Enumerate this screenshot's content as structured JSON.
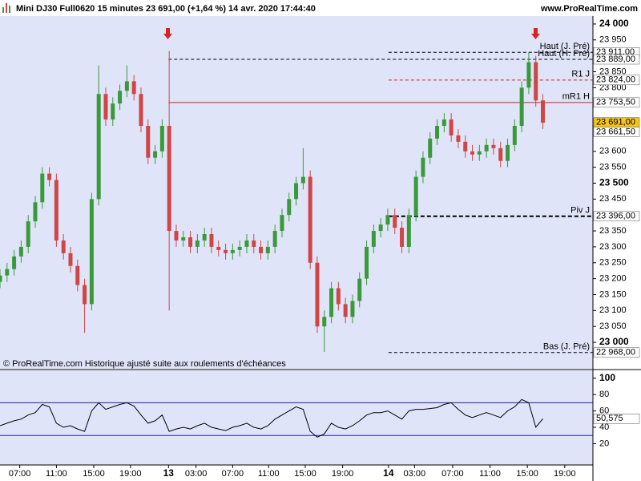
{
  "header": {
    "title": "Mini DJ30 Full0620 15 minutes 23 691,00 (+1,64 %) 14 avr. 2020 17:44:40",
    "site": "www.ProRealTime.com"
  },
  "chart_data": [
    {
      "type": "candlestick",
      "note": "© ProRealTime.com Historique ajusté suite aux roulements d'échéances",
      "up_color": "#3a9a3a",
      "down_color": "#d04545",
      "x": [
        0,
        1,
        2,
        3,
        4,
        5,
        6,
        7,
        8,
        9,
        10,
        11,
        12,
        13,
        14,
        15,
        16,
        17,
        18,
        19,
        20,
        21,
        22,
        23,
        24,
        25,
        26,
        27,
        28,
        29,
        30,
        31,
        32,
        33,
        34,
        35,
        36,
        37,
        38,
        39,
        40,
        41,
        42,
        43,
        44,
        45,
        46,
        47,
        48,
        49,
        50,
        51,
        52,
        53,
        54,
        55,
        56,
        57,
        58,
        59,
        60,
        61,
        62,
        63,
        64,
        65,
        66,
        67,
        68,
        69,
        70,
        71,
        72,
        73,
        74,
        75,
        76,
        77
      ],
      "open": [
        23190,
        23210,
        23230,
        23270,
        23300,
        23380,
        23440,
        23530,
        23510,
        23320,
        23280,
        23240,
        23180,
        23120,
        23450,
        23780,
        23700,
        23750,
        23790,
        23820,
        23780,
        23680,
        23580,
        23600,
        23680,
        23350,
        23320,
        23330,
        23300,
        23320,
        23340,
        23300,
        23290,
        23280,
        23290,
        23300,
        23320,
        23300,
        23280,
        23300,
        23350,
        23400,
        23450,
        23500,
        23520,
        23250,
        23050,
        23080,
        23170,
        23120,
        23080,
        23130,
        23200,
        23300,
        23350,
        23370,
        23400,
        23360,
        23300,
        23400,
        23520,
        23580,
        23640,
        23680,
        23700,
        23650,
        23630,
        23600,
        23590,
        23600,
        23620,
        23610,
        23570,
        23620,
        23680,
        23800,
        23880,
        23760
      ],
      "high": [
        23230,
        23250,
        23290,
        23320,
        23400,
        23460,
        23550,
        23550,
        23530,
        23340,
        23300,
        23260,
        23200,
        23470,
        23870,
        23800,
        23770,
        23810,
        23870,
        23840,
        23800,
        23700,
        23620,
        23700,
        23915,
        23370,
        23350,
        23350,
        23340,
        23360,
        23360,
        23320,
        23310,
        23310,
        23320,
        23340,
        23340,
        23320,
        23320,
        23370,
        23420,
        23470,
        23520,
        23610,
        23540,
        23270,
        23100,
        23190,
        23190,
        23140,
        23150,
        23220,
        23320,
        23370,
        23390,
        23420,
        23420,
        23380,
        23420,
        23540,
        23600,
        23660,
        23700,
        23720,
        23720,
        23670,
        23650,
        23620,
        23620,
        23640,
        23640,
        23630,
        23640,
        23700,
        23820,
        23911,
        23900,
        23780
      ],
      "low": [
        23170,
        23190,
        23210,
        23250,
        23280,
        23360,
        23420,
        23490,
        23300,
        23260,
        23220,
        23160,
        23030,
        23100,
        23430,
        23680,
        23680,
        23730,
        23770,
        23760,
        23660,
        23560,
        23560,
        23580,
        23100,
        23300,
        23300,
        23280,
        23280,
        23300,
        23280,
        23270,
        23260,
        23260,
        23270,
        23280,
        23280,
        23260,
        23260,
        23280,
        23330,
        23380,
        23430,
        23480,
        23230,
        23030,
        22970,
        23060,
        23100,
        23060,
        23060,
        23110,
        23180,
        23280,
        23330,
        23350,
        23340,
        23280,
        23280,
        23380,
        23500,
        23560,
        23620,
        23660,
        23630,
        23610,
        23580,
        23570,
        23570,
        23580,
        23590,
        23550,
        23550,
        23600,
        23660,
        23780,
        23740,
        23670
      ],
      "close": [
        23210,
        23230,
        23270,
        23300,
        23380,
        23440,
        23530,
        23510,
        23320,
        23280,
        23240,
        23180,
        23120,
        23450,
        23780,
        23700,
        23750,
        23790,
        23820,
        23780,
        23680,
        23580,
        23600,
        23680,
        23350,
        23320,
        23330,
        23300,
        23320,
        23340,
        23300,
        23290,
        23280,
        23290,
        23300,
        23320,
        23300,
        23280,
        23300,
        23350,
        23400,
        23450,
        23500,
        23520,
        23250,
        23050,
        23080,
        23170,
        23120,
        23080,
        23130,
        23200,
        23300,
        23350,
        23370,
        23400,
        23360,
        23300,
        23400,
        23520,
        23580,
        23640,
        23680,
        23700,
        23650,
        23630,
        23600,
        23590,
        23600,
        23620,
        23610,
        23570,
        23620,
        23680,
        23800,
        23880,
        23760,
        23690
      ],
      "xlim": [
        0,
        84.1
      ],
      "ylim": [
        22917,
        24025
      ],
      "yticks": [
        {
          "value": 23000,
          "label": "23 000"
        },
        {
          "value": 23050,
          "label": "23 050"
        },
        {
          "value": 23100,
          "label": "23 100"
        },
        {
          "value": 23150,
          "label": "23 150"
        },
        {
          "value": 23200,
          "label": "23 200"
        },
        {
          "value": 23250,
          "label": "23 250"
        },
        {
          "value": 23300,
          "label": "23 300"
        },
        {
          "value": 23350,
          "label": "23 350"
        },
        {
          "value": 23450,
          "label": "23 450"
        },
        {
          "value": 23500,
          "label": "23 500"
        },
        {
          "value": 23550,
          "label": "23 550"
        },
        {
          "value": 23600,
          "label": "23 600"
        },
        {
          "value": 23800,
          "label": "23 800"
        },
        {
          "value": 23850,
          "label": "23 850"
        },
        {
          "value": 23950,
          "label": "23 950"
        },
        {
          "value": 24000,
          "label": "24 000"
        }
      ],
      "levels": [
        {
          "name": "Haut (J. Pré)",
          "value": 23911,
          "label": "23 911,00",
          "from": 55.1,
          "color": "#000000",
          "dash": true
        },
        {
          "name": "Haut (H. Pré)",
          "value": 23889,
          "label": "23 889,00",
          "from": 23.9,
          "color": "#000000",
          "dash": true
        },
        {
          "name": "R1 J",
          "value": 23824,
          "label": "23 824,00",
          "from": 55.1,
          "color": "#d02020",
          "dash": true
        },
        {
          "name": "mR1 H",
          "value": 23753.5,
          "label": "23 753,50",
          "from": 23.9,
          "color": "#d02020",
          "dash": false
        },
        {
          "name": "Piv J",
          "value": 23396,
          "label": "23 396,00",
          "from": 55.1,
          "color": "#000000",
          "dash": true,
          "bold": true
        },
        {
          "name": "Bas (J. Pré)",
          "value": 22968,
          "label": "22 968,00",
          "from": 55.1,
          "color": "#000000",
          "dash": true
        }
      ],
      "current": {
        "value": 23691,
        "label": "23 691,00",
        "color": "#f5c518"
      },
      "bid": {
        "value": 23661.5,
        "label": "23 661,50"
      }
    },
    {
      "type": "line",
      "color": "#000000",
      "values": [
        42,
        45,
        48,
        50,
        55,
        58,
        68,
        65,
        45,
        40,
        42,
        38,
        35,
        60,
        70,
        62,
        65,
        68,
        70,
        66,
        55,
        45,
        48,
        55,
        35,
        38,
        40,
        38,
        42,
        45,
        40,
        38,
        36,
        40,
        42,
        45,
        40,
        38,
        42,
        50,
        55,
        60,
        65,
        62,
        35,
        28,
        32,
        45,
        40,
        38,
        42,
        48,
        55,
        58,
        58,
        60,
        55,
        50,
        60,
        62,
        62,
        63,
        64,
        68,
        70,
        62,
        55,
        52,
        55,
        58,
        55,
        52,
        60,
        65,
        74,
        70,
        40,
        50.575
      ],
      "bands": [
        30,
        70
      ],
      "band_color": "#2020a0",
      "current": {
        "value": 50.575,
        "label": "50,575"
      },
      "xlim": [
        0,
        84.1
      ],
      "ylim": [
        -6,
        109.6
      ],
      "yticks": [
        20,
        40,
        60,
        80,
        100
      ],
      "xticks": [
        {
          "value": 2.8,
          "label": "07:00"
        },
        {
          "value": 8,
          "label": "11:00"
        },
        {
          "value": 13.3,
          "label": "15:00"
        },
        {
          "value": 18.5,
          "label": "19:00"
        },
        {
          "value": 23.9,
          "label": "13"
        },
        {
          "value": 27.8,
          "label": "03:00"
        },
        {
          "value": 33,
          "label": "07:00"
        },
        {
          "value": 38.1,
          "label": "11:00"
        },
        {
          "value": 43.3,
          "label": "15:00"
        },
        {
          "value": 48.6,
          "label": "19:00"
        },
        {
          "value": 55.1,
          "label": "14"
        },
        {
          "value": 58.8,
          "label": "03:00"
        },
        {
          "value": 64.2,
          "label": "07:00"
        },
        {
          "value": 69.5,
          "label": "11:00"
        },
        {
          "value": 74.8,
          "label": "15:00"
        },
        {
          "value": 80.1,
          "label": "19:00"
        }
      ]
    }
  ]
}
